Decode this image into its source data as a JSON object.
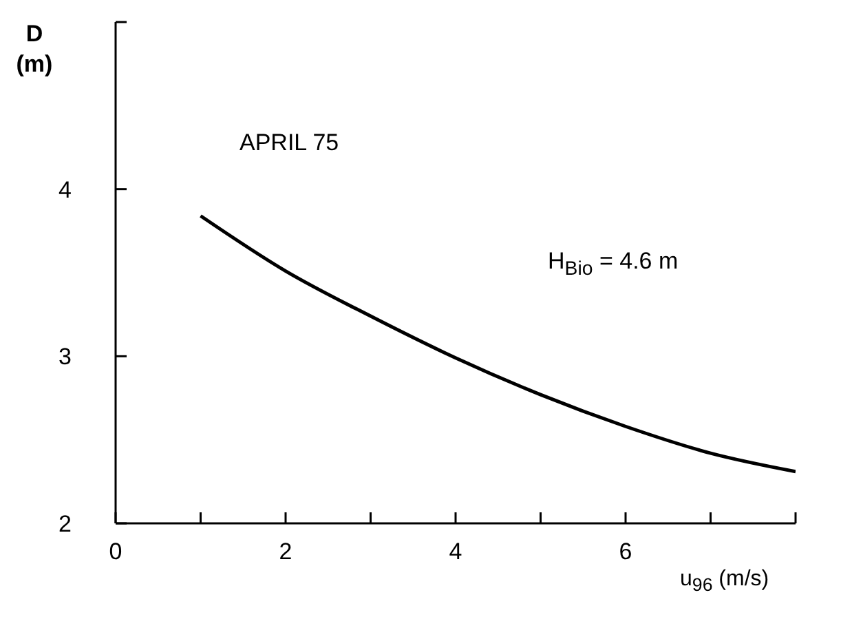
{
  "chart_data": {
    "type": "line",
    "xlabel": "u$_{96}$ (m/s)",
    "ylabel": "D (m)",
    "annotations": [
      "APRIL 75",
      "H$_{Bio}$ = 4.6 m"
    ],
    "x": [
      1,
      2,
      3,
      4,
      5,
      6,
      7,
      8
    ],
    "series": [
      {
        "color": "#000000",
        "values": [
          3.84,
          3.51,
          3.24,
          2.99,
          2.77,
          2.58,
          2.42,
          2.31
        ]
      }
    ],
    "xlim": [
      0,
      8
    ],
    "xticks": [
      0,
      {
        "value": 1,
        "label": null
      },
      2,
      {
        "value": 3,
        "label": null
      },
      4,
      {
        "value": 5,
        "label": null
      },
      6,
      {
        "value": 7,
        "label": null
      },
      {
        "value": 8,
        "label": null
      }
    ],
    "ylim": [
      2,
      5
    ],
    "yticks": [
      2,
      3,
      4,
      {
        "value": 5,
        "label": null
      }
    ],
    "grid": false,
    "legend": false,
    "marker": "none",
    "line_style": "solid"
  }
}
